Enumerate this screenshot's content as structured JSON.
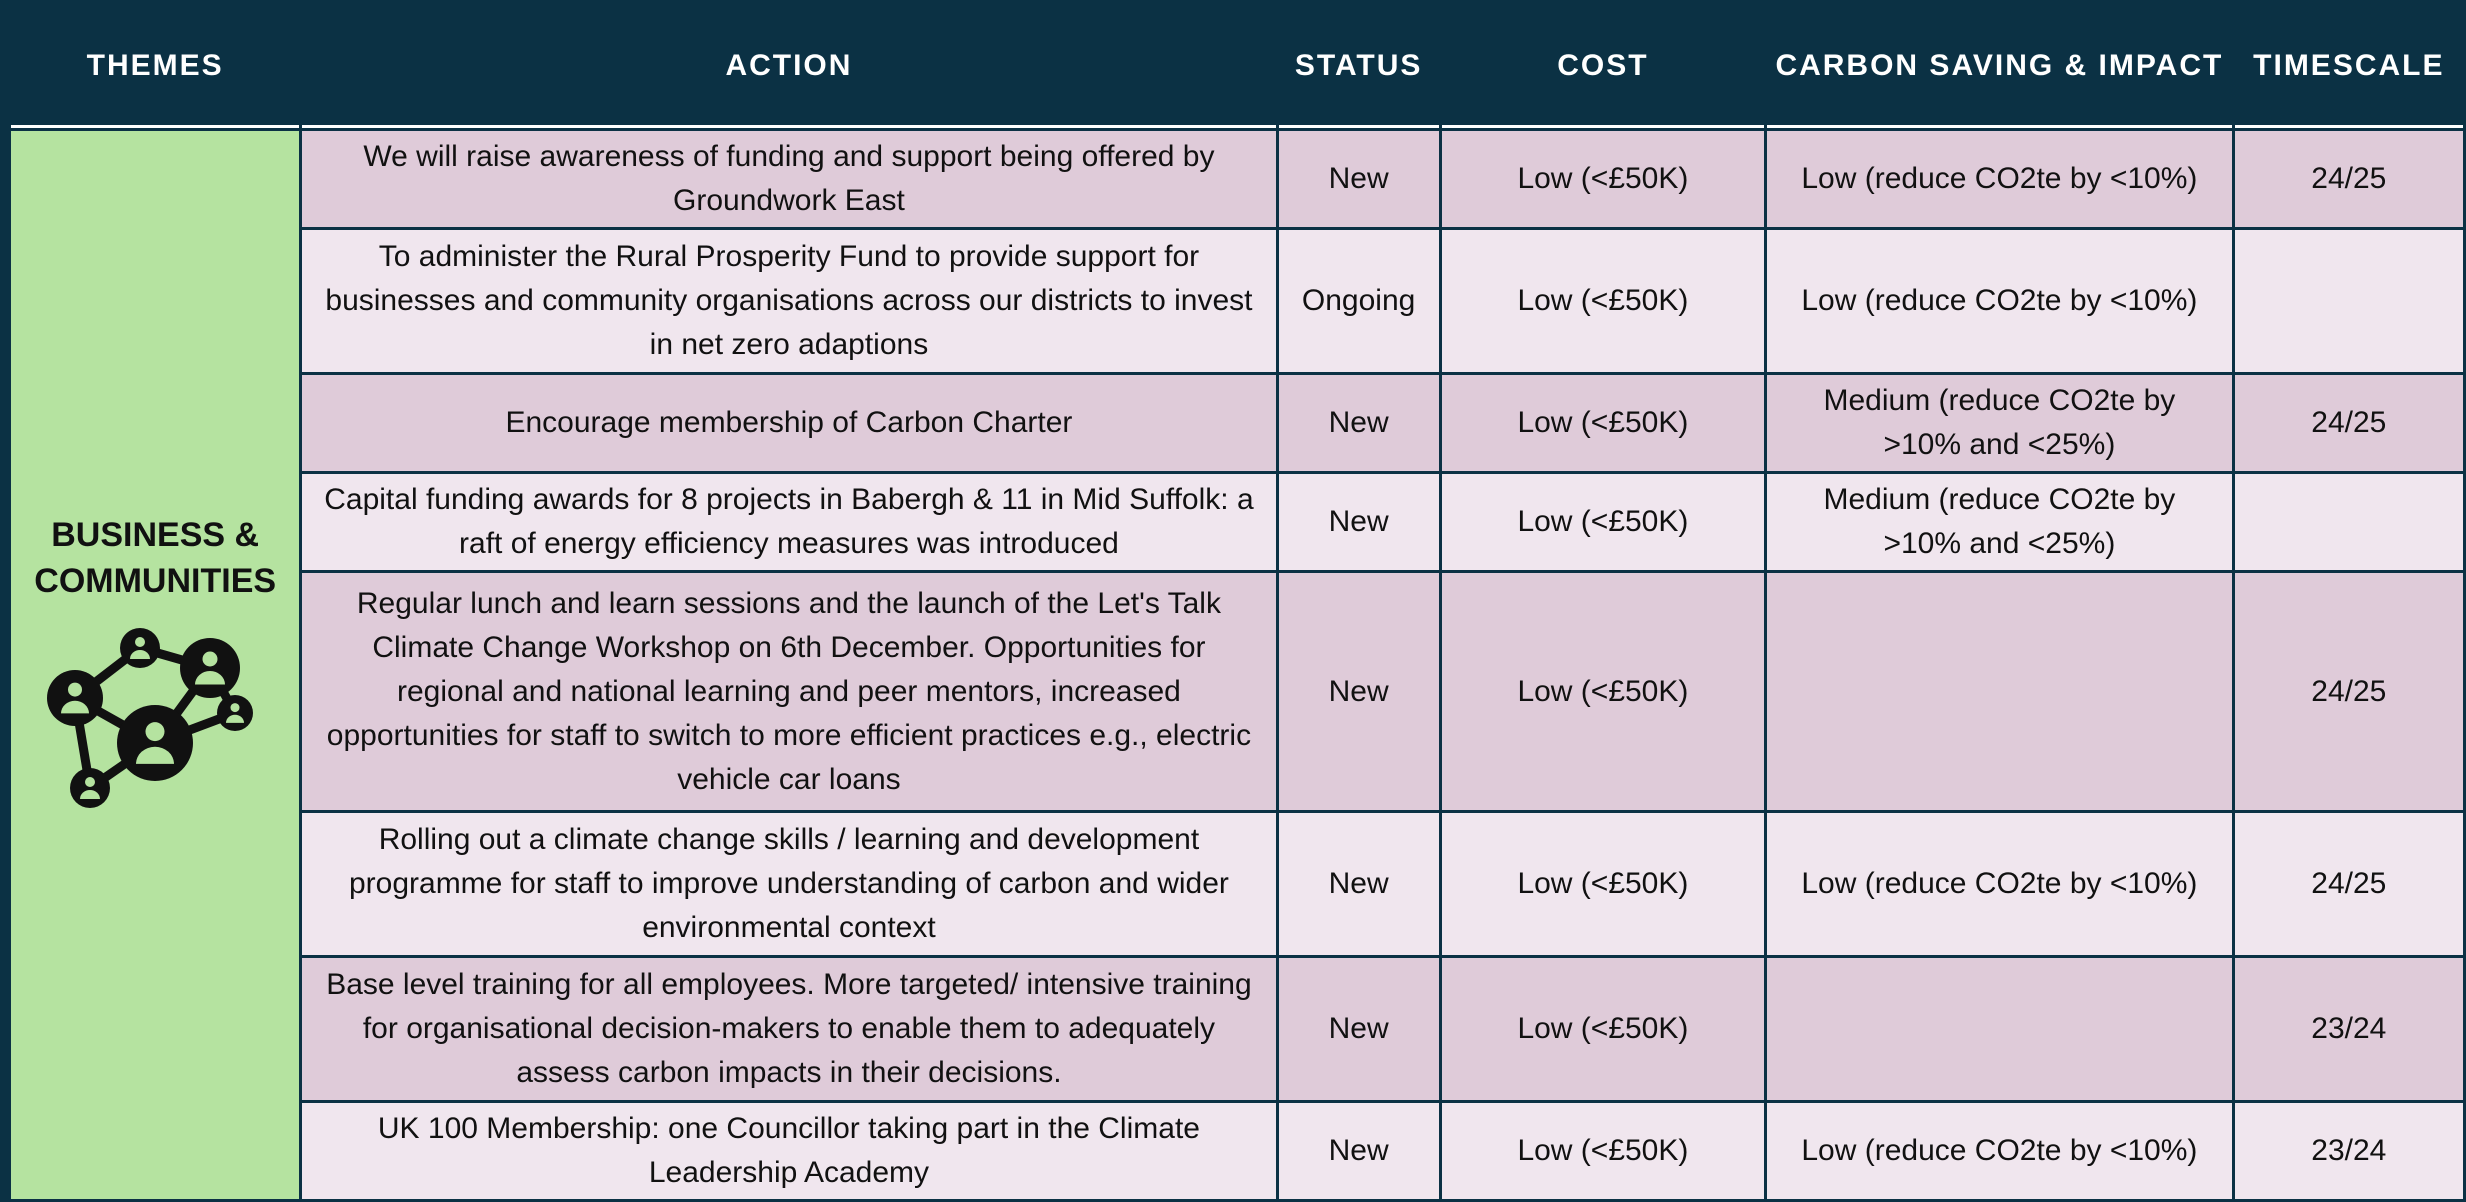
{
  "table": {
    "headers": [
      "THEMES",
      "ACTION",
      "STATUS",
      "COST",
      "CARBON SAVING & IMPACT",
      "TIMESCALE"
    ],
    "theme": "BUSINESS & COMMUNITIES",
    "rows": [
      [
        "We will raise awareness of funding and support being offered by Groundwork East",
        "New",
        "Low (<£50K)",
        "Low (reduce CO2te by <10%)",
        "24/25"
      ],
      [
        "To administer the Rural Prosperity Fund to provide support for businesses and community organisations across our districts to invest in net zero adaptions",
        "Ongoing",
        "Low (<£50K)",
        "Low (reduce CO2te by <10%)",
        null
      ],
      [
        "Encourage membership of Carbon Charter",
        "New",
        "Low (<£50K)",
        "Medium (reduce CO2te by >10% and <25%)",
        "24/25"
      ],
      [
        "Capital funding awards for 8 projects in Babergh & 11 in Mid Suffolk: a raft of energy efficiency measures was introduced",
        "New",
        "Low (<£50K)",
        "Medium (reduce CO2te by >10% and <25%)",
        null
      ],
      [
        "Regular lunch and learn sessions and the launch of the Let's Talk Climate Change Workshop on 6th December. Opportunities for regional and national learning and peer mentors, increased opportunities for staff to switch to more efficient practices e.g., electric vehicle car loans",
        "New",
        "Low (<£50K)",
        null,
        "24/25"
      ],
      [
        "Rolling out a climate change skills / learning and development programme for staff to improve understanding of carbon and wider environmental context",
        "New",
        "Low (<£50K)",
        "Low (reduce CO2te by <10%)",
        "24/25"
      ],
      [
        "Base level training for all employees. More targeted/ intensive training for organisational decision-makers to enable them to adequately assess carbon impacts in their decisions.",
        "New",
        "Low (<£50K)",
        null,
        "23/24"
      ],
      [
        "UK 100 Membership: one Councillor taking part in the Climate Leadership Academy",
        "New",
        "Low (<£50K)",
        "Low (reduce CO2te by <10%)",
        "23/24"
      ]
    ]
  }
}
